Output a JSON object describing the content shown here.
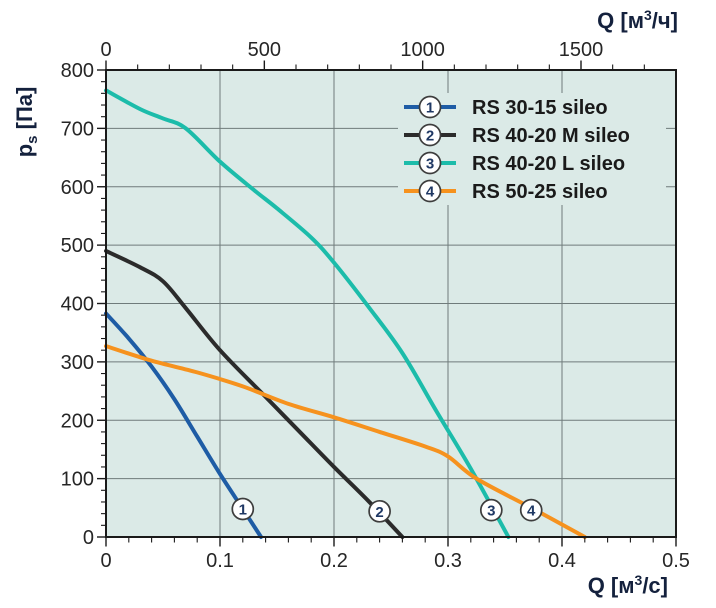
{
  "chart_data": {
    "type": "line",
    "title": "",
    "plot_bg_color": "#dbeae7",
    "grid_color": "#6f7b7b",
    "axis_color": "#1a1a1a",
    "tick_label_color": "#262626",
    "axis_label_color": "#14213d",
    "legend_text_color": "#1a1a1a",
    "marker_number_color": "#1f3864",
    "marker_circle_stroke": "#3d3d3d",
    "grid": true,
    "legend_position": "top-right-inside",
    "y_axis": {
      "label": "ps [Па]",
      "label_symbol": "p",
      "label_subscript": "s",
      "label_unit": " [Па]",
      "min": 0,
      "max": 800,
      "major_step": 100,
      "minor_step": 20,
      "tick_labels": [
        "0",
        "100",
        "200",
        "300",
        "400",
        "500",
        "600",
        "700",
        "800"
      ]
    },
    "x_axis_bottom": {
      "label": "Q [м³/с]",
      "label_symbol": "Q [м",
      "label_superscript": "3",
      "label_unit_end": "/с]",
      "min": 0,
      "max": 0.5,
      "major_step": 0.1,
      "minor_step": 0.02,
      "tick_labels": [
        "0",
        "0.1",
        "0.2",
        "0.3",
        "0.4",
        "0.5"
      ]
    },
    "x_axis_top": {
      "label": "Q [м³/ч]",
      "label_symbol": "Q [м",
      "label_superscript": "3",
      "label_unit_end": "/ч]",
      "min": 0,
      "max": 1800,
      "major_step": 500,
      "minor_step": 100,
      "labeled_ticks": [
        0,
        500,
        1000,
        1500
      ],
      "tick_labels": [
        "0",
        "500",
        "1000",
        "1500"
      ],
      "scale_factor_vs_bottom": 3600
    },
    "series": [
      {
        "number": "1",
        "name": "RS 30-15 sileo",
        "color": "#1e5ca5",
        "points": [
          [
            0,
            383
          ],
          [
            0.02,
            340
          ],
          [
            0.04,
            292
          ],
          [
            0.06,
            236
          ],
          [
            0.08,
            172
          ],
          [
            0.1,
            108
          ],
          [
            0.12,
            48
          ],
          [
            0.136,
            0
          ]
        ],
        "marker_q": 0.12,
        "marker_p": 48
      },
      {
        "number": "2",
        "name": "RS 40-20 M sileo",
        "color": "#2b2b2b",
        "points": [
          [
            0,
            490
          ],
          [
            0.03,
            462
          ],
          [
            0.05,
            438
          ],
          [
            0.07,
            392
          ],
          [
            0.1,
            320
          ],
          [
            0.14,
            240
          ],
          [
            0.17,
            180
          ],
          [
            0.2,
            120
          ],
          [
            0.23,
            62
          ],
          [
            0.26,
            0
          ]
        ],
        "marker_q": 0.24,
        "marker_p": 44
      },
      {
        "number": "3",
        "name": "RS 40-20 L sileo",
        "color": "#1cbcaa",
        "points": [
          [
            0,
            765
          ],
          [
            0.03,
            733
          ],
          [
            0.05,
            717
          ],
          [
            0.07,
            700
          ],
          [
            0.1,
            643
          ],
          [
            0.13,
            594
          ],
          [
            0.15,
            563
          ],
          [
            0.18,
            513
          ],
          [
            0.2,
            470
          ],
          [
            0.23,
            395
          ],
          [
            0.26,
            315
          ],
          [
            0.29,
            215
          ],
          [
            0.32,
            117
          ],
          [
            0.353,
            0
          ]
        ],
        "marker_q": 0.338,
        "marker_p": 46
      },
      {
        "number": "4",
        "name": "RS 50-25 sileo",
        "color": "#f6921e",
        "points": [
          [
            0,
            327
          ],
          [
            0.04,
            302
          ],
          [
            0.08,
            282
          ],
          [
            0.12,
            258
          ],
          [
            0.16,
            228
          ],
          [
            0.2,
            205
          ],
          [
            0.24,
            180
          ],
          [
            0.28,
            155
          ],
          [
            0.3,
            138
          ],
          [
            0.325,
            100
          ],
          [
            0.375,
            48
          ],
          [
            0.42,
            0
          ]
        ],
        "marker_q": 0.373,
        "marker_p": 46
      }
    ],
    "xlim": [
      0,
      0.5
    ],
    "ylim": [
      0,
      800
    ]
  }
}
